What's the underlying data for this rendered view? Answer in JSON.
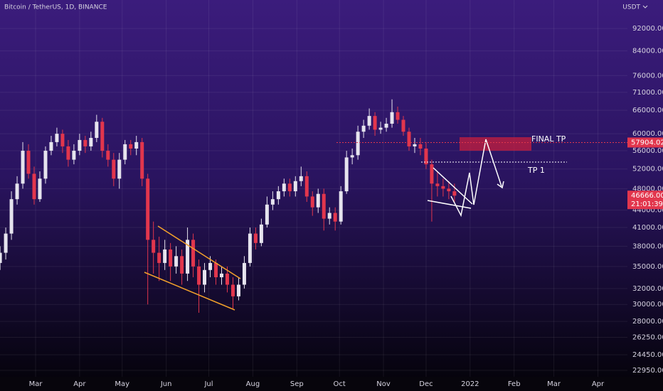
{
  "chart_data": {
    "type": "candlestick",
    "title": "Bitcoin / TetherUS, 1D, BINANCE",
    "currency": "USDT",
    "log_scale": true,
    "grid": true,
    "up_color": "#e6e4ee",
    "down_color": "#e2364d",
    "xlim": [
      33.95,
      475.8
    ],
    "xticks": [
      {
        "value": 59,
        "label": "Mar"
      },
      {
        "value": 90,
        "label": "Apr"
      },
      {
        "value": 120,
        "label": "May"
      },
      {
        "value": 151,
        "label": "Jun"
      },
      {
        "value": 181,
        "label": "Jul"
      },
      {
        "value": 212,
        "label": "Aug"
      },
      {
        "value": 243,
        "label": "Sep"
      },
      {
        "value": 273,
        "label": "Oct"
      },
      {
        "value": 304,
        "label": "Nov"
      },
      {
        "value": 334,
        "label": "Dec"
      },
      {
        "value": 365,
        "label": "2022"
      },
      {
        "value": 396,
        "label": "Feb"
      },
      {
        "value": 424,
        "label": "Mar"
      },
      {
        "value": 455,
        "label": "Apr"
      }
    ],
    "ylim": [
      22360,
      103300
    ],
    "yticks": [
      {
        "value": 22950,
        "label": "22950.00"
      },
      {
        "value": 24450,
        "label": "24450.00"
      },
      {
        "value": 26250,
        "label": "26250.00"
      },
      {
        "value": 28000,
        "label": "28000.00"
      },
      {
        "value": 30000,
        "label": "30000.00"
      },
      {
        "value": 32000,
        "label": "32000.00"
      },
      {
        "value": 35000,
        "label": "35000.00"
      },
      {
        "value": 38000,
        "label": "38000.00"
      },
      {
        "value": 41000,
        "label": "41000.00"
      },
      {
        "value": 44000,
        "label": "44000.00"
      },
      {
        "value": 48000,
        "label": "48000.00"
      },
      {
        "value": 52000,
        "label": "52000.00"
      },
      {
        "value": 56000,
        "label": "56000.00"
      },
      {
        "value": 60000,
        "label": "60000.00"
      },
      {
        "value": 66000,
        "label": "66000.00"
      },
      {
        "value": 71000,
        "label": "71000.00"
      },
      {
        "value": 76000,
        "label": "76000.00"
      },
      {
        "value": 84000,
        "label": "84000.00"
      },
      {
        "value": 92000,
        "label": "92000.00"
      }
    ],
    "x": [
      34,
      38,
      42,
      46,
      50,
      54,
      58,
      62,
      66,
      70,
      74,
      78,
      82,
      86,
      90,
      94,
      98,
      102,
      106,
      110,
      114,
      118,
      122,
      126,
      130,
      134,
      138,
      142,
      146,
      150,
      154,
      158,
      162,
      166,
      170,
      174,
      178,
      182,
      186,
      190,
      194,
      198,
      202,
      206,
      210,
      214,
      218,
      222,
      226,
      230,
      234,
      238,
      242,
      246,
      250,
      254,
      258,
      262,
      266,
      270,
      274,
      278,
      282,
      286,
      290,
      294,
      298,
      302,
      306,
      310,
      314,
      318,
      322,
      326,
      330,
      334,
      338,
      342,
      346,
      350,
      354
    ],
    "open": [
      35500,
      37000,
      40000,
      46000,
      49000,
      56000,
      51000,
      46000,
      50000,
      56000,
      58000,
      60000,
      57000,
      54000,
      56000,
      58500,
      57000,
      59000,
      63000,
      56000,
      54000,
      50000,
      54000,
      57500,
      56500,
      58000,
      50000,
      39000,
      37000,
      35500,
      37500,
      35000,
      36500,
      34000,
      39000,
      35000,
      32500,
      34500,
      35500,
      33500,
      34000,
      32500,
      31000,
      32500,
      35500,
      40000,
      38500,
      41500,
      45000,
      46000,
      47500,
      49000,
      47500,
      49500,
      50500,
      46500,
      44500,
      47000,
      42500,
      43500,
      42000,
      47500,
      54500,
      55000,
      60500,
      62000,
      64500,
      61000,
      61500,
      62500,
      65500,
      63500,
      60500,
      57000,
      57500,
      56500,
      53000,
      49000,
      48500,
      48000,
      47500
    ],
    "high": [
      38000,
      41000,
      47500,
      50500,
      58000,
      57500,
      52500,
      51500,
      57000,
      59500,
      61500,
      61000,
      58500,
      57500,
      60000,
      59500,
      60500,
      64800,
      64000,
      57500,
      55500,
      55500,
      58500,
      58500,
      59500,
      59000,
      51000,
      42000,
      39500,
      39000,
      38500,
      38000,
      37500,
      41000,
      40000,
      36000,
      35500,
      36500,
      36000,
      35000,
      35000,
      33500,
      33500,
      36500,
      41000,
      41000,
      42500,
      46500,
      47500,
      48500,
      50000,
      50000,
      50500,
      52500,
      51500,
      47500,
      48000,
      48000,
      44500,
      44500,
      48500,
      56000,
      56500,
      62000,
      63500,
      66500,
      65500,
      63000,
      64000,
      69000,
      67000,
      64500,
      61500,
      59000,
      59000,
      58000,
      54000,
      51500,
      50000,
      49500,
      49000
    ],
    "low": [
      34500,
      36000,
      39000,
      45000,
      48000,
      50000,
      45000,
      45500,
      49000,
      55000,
      57000,
      55500,
      52500,
      53000,
      55000,
      55500,
      56000,
      58000,
      54500,
      52500,
      48500,
      48000,
      53000,
      55000,
      55000,
      48500,
      30000,
      34000,
      33000,
      34500,
      33000,
      34000,
      32500,
      33000,
      33500,
      29000,
      31500,
      33500,
      32500,
      32500,
      31500,
      29500,
      30500,
      32000,
      35000,
      37500,
      38000,
      41000,
      44000,
      45000,
      46500,
      46500,
      46500,
      48500,
      45500,
      43000,
      43500,
      40500,
      41500,
      40500,
      41500,
      47000,
      53000,
      54000,
      59000,
      61000,
      59500,
      60000,
      60500,
      61500,
      62500,
      59500,
      56000,
      55500,
      55000,
      52000,
      42000,
      46500,
      46500,
      46000,
      45500
    ],
    "close": [
      37000,
      40000,
      46000,
      49000,
      56000,
      51000,
      46000,
      50000,
      56000,
      58000,
      60000,
      57000,
      54000,
      56000,
      58500,
      57000,
      59000,
      63000,
      56000,
      54000,
      50000,
      54000,
      57500,
      56500,
      58000,
      50000,
      39000,
      37000,
      35500,
      37500,
      35000,
      36500,
      34000,
      39000,
      35000,
      32500,
      34500,
      35500,
      33500,
      34000,
      32500,
      31000,
      32500,
      35500,
      40000,
      38500,
      41500,
      45000,
      46000,
      47500,
      49000,
      47500,
      49500,
      50500,
      46500,
      44500,
      47000,
      42500,
      43500,
      42000,
      47500,
      54500,
      55000,
      60500,
      62000,
      64500,
      61000,
      61500,
      62500,
      65500,
      63500,
      60500,
      57000,
      57500,
      56500,
      53000,
      49000,
      48500,
      48000,
      47500,
      46666
    ],
    "price_line": {
      "value": 57904.02,
      "label": "57904.02"
    },
    "last_price": {
      "value": 46666,
      "label": "46666.00"
    },
    "countdown": "21:01:39",
    "annotations": [
      "FINAL TP",
      "TP 1"
    ]
  }
}
